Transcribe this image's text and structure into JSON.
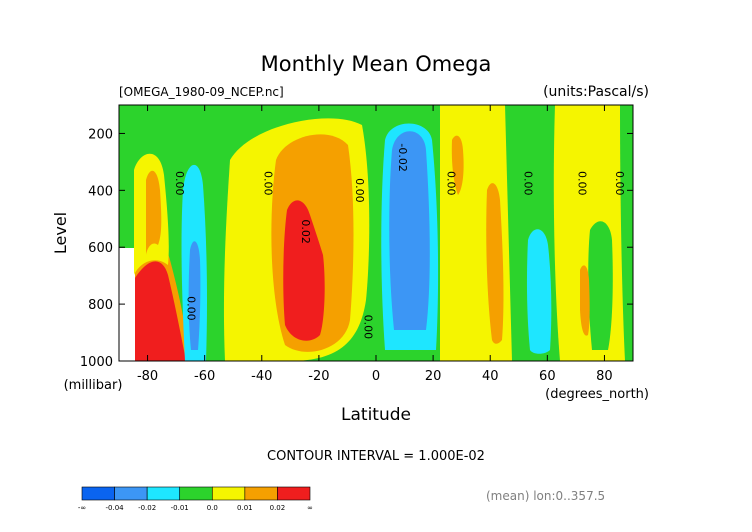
{
  "chart_data": {
    "type": "contour",
    "title": "Monthly Mean Omega",
    "subtitle_left": "[OMEGA_1980-09_NCEP.nc]",
    "subtitle_right": "(units:Pascal/s)",
    "xlabel": "Latitude",
    "xunit": "(degrees_north)",
    "ylabel": "Level",
    "yunit": "(millibar)",
    "xlim": [
      -90,
      90
    ],
    "ylim": [
      1000,
      100
    ],
    "x_ticks": [
      -80,
      -60,
      -40,
      -20,
      0,
      20,
      40,
      60,
      80
    ],
    "x_tick_labels": [
      "-80",
      "-60",
      "-40",
      "-20",
      "0",
      "20",
      "40",
      "60",
      "80"
    ],
    "y_ticks": [
      200,
      400,
      600,
      800,
      1000
    ],
    "y_tick_labels": [
      "200",
      "400",
      "600",
      "800",
      "1000"
    ],
    "contour_interval_text": "CONTOUR INTERVAL = 1.000E-02",
    "footnote": "(mean) lon:0..357.5",
    "contour_labels": [
      {
        "text": "0.00",
        "lat": -70,
        "level": 375
      },
      {
        "text": "0.00",
        "lat": -39,
        "level": 375
      },
      {
        "text": "0.02",
        "lat": -26,
        "level": 545
      },
      {
        "text": "0.00",
        "lat": -7,
        "level": 400
      },
      {
        "text": "0.00",
        "lat": -4,
        "level": 880
      },
      {
        "text": "0.00",
        "lat": -66,
        "level": 815
      },
      {
        "text": "-0.02",
        "lat": 8,
        "level": 285
      },
      {
        "text": "0.00",
        "lat": 25,
        "level": 375
      },
      {
        "text": "0.00",
        "lat": 52,
        "level": 375
      },
      {
        "text": "0.00",
        "lat": 71,
        "level": 375
      },
      {
        "text": "0.00",
        "lat": 84,
        "level": 375
      }
    ],
    "colorbar": {
      "colors": [
        "#0a64f0",
        "#3c96f5",
        "#1ee6ff",
        "#2cd32c",
        "#f5f500",
        "#f5a000",
        "#f01e1e"
      ],
      "labels": [
        "-∞",
        "-0.04",
        "-0.02",
        "-0.01",
        "0.0",
        "0.01",
        "0.02",
        "∞"
      ]
    }
  }
}
